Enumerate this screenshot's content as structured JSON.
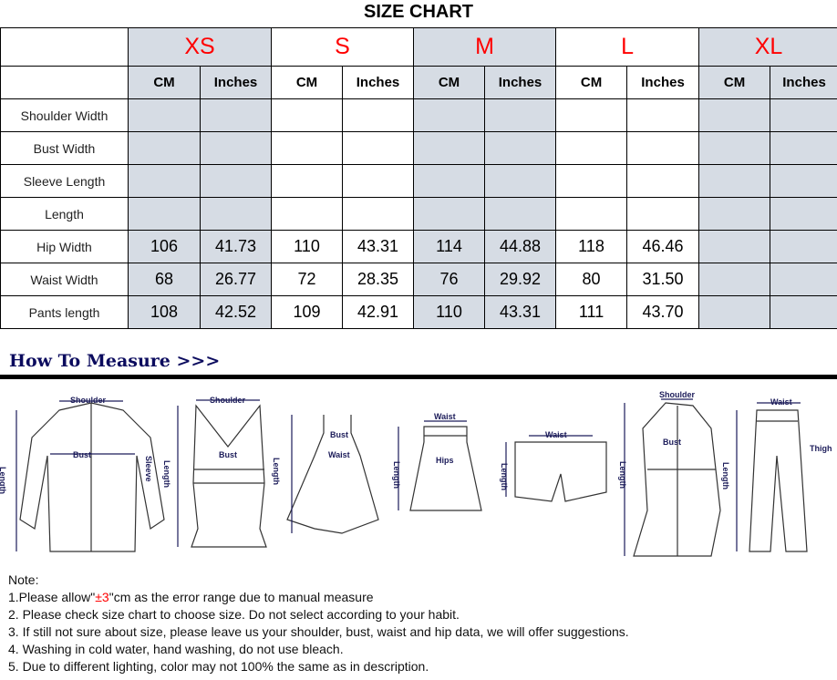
{
  "title": "SIZE CHART",
  "sizes": [
    "XS",
    "S",
    "M",
    "L",
    "XL"
  ],
  "units": {
    "cm": "CM",
    "in": "Inches"
  },
  "rows": [
    {
      "label": "Shoulder Width",
      "values": [
        "",
        "",
        "",
        "",
        "",
        "",
        "",
        "",
        "",
        ""
      ]
    },
    {
      "label": "Bust Width",
      "values": [
        "",
        "",
        "",
        "",
        "",
        "",
        "",
        "",
        "",
        ""
      ]
    },
    {
      "label": "Sleeve Length",
      "values": [
        "",
        "",
        "",
        "",
        "",
        "",
        "",
        "",
        "",
        ""
      ]
    },
    {
      "label": "Length",
      "values": [
        "",
        "",
        "",
        "",
        "",
        "",
        "",
        "",
        "",
        ""
      ]
    },
    {
      "label": "Hip Width",
      "values": [
        "106",
        "41.73",
        "110",
        "43.31",
        "114",
        "44.88",
        "118",
        "46.46",
        "",
        ""
      ]
    },
    {
      "label": "Waist Width",
      "values": [
        "68",
        "26.77",
        "72",
        "28.35",
        "76",
        "29.92",
        "80",
        "31.50",
        "",
        ""
      ]
    },
    {
      "label": "Pants length",
      "values": [
        "108",
        "42.52",
        "109",
        "42.91",
        "110",
        "43.31",
        "111",
        "43.70",
        "",
        ""
      ]
    }
  ],
  "how_to_measure": "How To Measure >>>",
  "illustration_labels": {
    "shoulder": "Shoulder",
    "length": "Length",
    "bust": "Bust",
    "sleeve": "Sleeve",
    "waist": "Waist",
    "hips": "Hips",
    "thigh": "Thigh"
  },
  "notes": {
    "heading": "Note:",
    "n1_pre": "1.Please allow\"",
    "n1_red": "±3",
    "n1_post": "\"cm as the error range due to manual measure",
    "n2": "2. Please check size chart to choose size. Do not select according to your habit.",
    "n3": "3. If still not sure about size, please leave us your shoulder, bust, waist and hip data, we will offer suggestions.",
    "n4": "4. Washing in cold water, hand washing, do not use bleach.",
    "n5": "5. Due to different lighting, color may not 100% the same as in description."
  }
}
